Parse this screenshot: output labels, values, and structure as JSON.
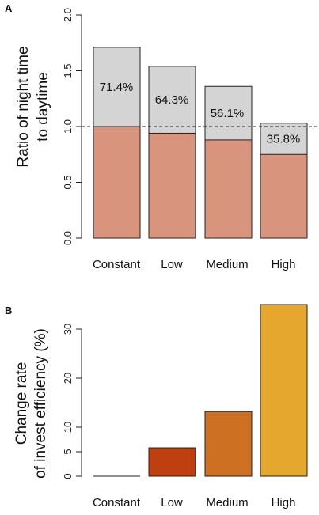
{
  "colors": {
    "gray_bar": "#d4d4d4",
    "salmon_bar": "#d8947c",
    "low_bar": "#bf3f11",
    "medium_bar": "#cd7021",
    "high_bar": "#e6a72e"
  },
  "chart_data": [
    {
      "panel_label": "A",
      "type": "bar",
      "categories": [
        "Constant",
        "Low",
        "Medium",
        "High"
      ],
      "series": [
        {
          "values": [
            1.71,
            1.54,
            1.36,
            1.03
          ]
        },
        {
          "values": [
            1.0,
            0.94,
            0.88,
            0.75
          ]
        }
      ],
      "bar_labels": [
        "71.4%",
        "64.3%",
        "56.1%",
        "35.8%"
      ],
      "ylabel_line1": "Ratio of night time",
      "ylabel_line2": "to daytime",
      "ylim": [
        0,
        2
      ],
      "yticks": [
        "0.0",
        "0.5",
        "1.0",
        "1.5",
        "2.0"
      ],
      "reference_line": 1.0
    },
    {
      "panel_label": "B",
      "type": "bar",
      "categories": [
        "Constant",
        "Low",
        "Medium",
        "High"
      ],
      "values": [
        0,
        5.8,
        13.2,
        35.0
      ],
      "ylabel_line1": "Change rate",
      "ylabel_line2": "of invest efficiency (%)",
      "ylim": [
        0,
        36
      ],
      "yticks": [
        "0",
        "5",
        "10",
        "20",
        "30"
      ]
    }
  ]
}
